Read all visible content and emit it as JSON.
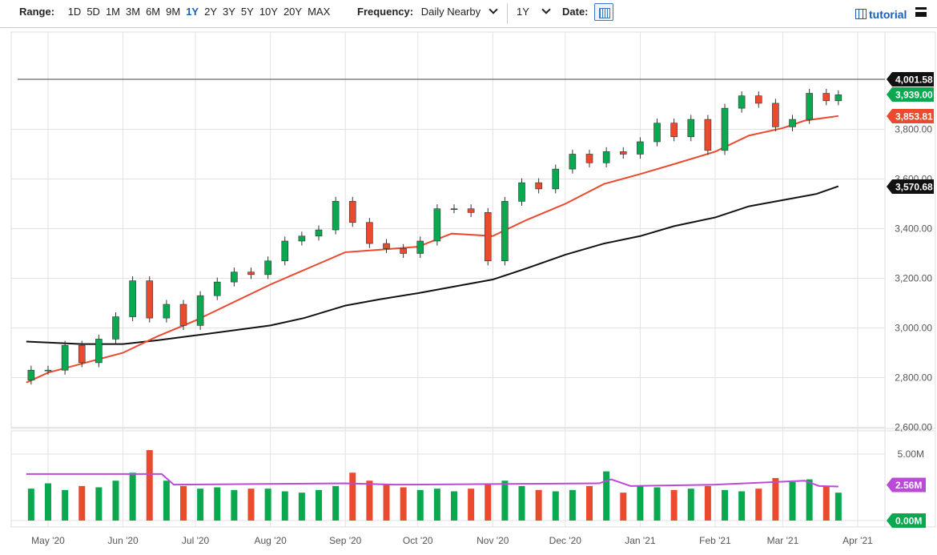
{
  "toolbar": {
    "range_label": "Range:",
    "ranges": [
      "1D",
      "5D",
      "1M",
      "3M",
      "6M",
      "9M",
      "1Y",
      "2Y",
      "3Y",
      "5Y",
      "10Y",
      "20Y",
      "MAX"
    ],
    "active_range": "1Y",
    "frequency_label": "Frequency:",
    "frequency_value": "Daily Nearby",
    "period_value": "1Y",
    "date_label": "Date:",
    "tutorial_label": "tutorial"
  },
  "colors": {
    "up": "#0aa84f",
    "down": "#ea4a2e",
    "ma_fast": "#ea4a2e",
    "ma_slow": "#111111",
    "volume_avg": "#b94bd6",
    "grid": "#e2e2e2"
  },
  "chart_data": {
    "type": "candlestick",
    "price_axis": {
      "ticks": [
        "3,800.00",
        "3,600.00",
        "3,400.00",
        "3,200.00",
        "3,000.00",
        "2,800.00",
        "2,600.00"
      ],
      "tick_values": [
        3800,
        3600,
        3400,
        3200,
        3000,
        2800,
        2600
      ],
      "range": [
        2600,
        4060
      ]
    },
    "x_ticks": [
      {
        "label": "May '20",
        "date": "2020-05-01"
      },
      {
        "label": "Jun '20",
        "date": "2020-06-01"
      },
      {
        "label": "Jul '20",
        "date": "2020-07-01"
      },
      {
        "label": "Aug '20",
        "date": "2020-08-01"
      },
      {
        "label": "Sep '20",
        "date": "2020-09-01"
      },
      {
        "label": "Oct '20",
        "date": "2020-10-01"
      },
      {
        "label": "Nov '20",
        "date": "2020-11-01"
      },
      {
        "label": "Dec '20",
        "date": "2020-12-01"
      },
      {
        "label": "Jan '21",
        "date": "2021-01-01"
      },
      {
        "label": "Feb '21",
        "date": "2021-02-01"
      },
      {
        "label": "Mar '21",
        "date": "2021-03-01"
      },
      {
        "label": "Apr '21",
        "date": "2021-04-01"
      }
    ],
    "candles": [
      [
        "2020-04-24",
        2830
      ],
      [
        "2020-05-01",
        2830
      ],
      [
        "2020-05-08",
        2930
      ],
      [
        "2020-05-15",
        2860
      ],
      [
        "2020-05-22",
        2955
      ],
      [
        "2020-05-29",
        3045
      ],
      [
        "2020-06-05",
        3190
      ],
      [
        "2020-06-12",
        3040
      ],
      [
        "2020-06-19",
        3095
      ],
      [
        "2020-06-26",
        3010
      ],
      [
        "2020-07-03",
        3130
      ],
      [
        "2020-07-10",
        3185
      ],
      [
        "2020-07-17",
        3225
      ],
      [
        "2020-07-24",
        3215
      ],
      [
        "2020-07-31",
        3270
      ],
      [
        "2020-08-07",
        3350
      ],
      [
        "2020-08-14",
        3370
      ],
      [
        "2020-08-21",
        3395
      ],
      [
        "2020-08-28",
        3510
      ],
      [
        "2020-09-04",
        3425
      ],
      [
        "2020-09-11",
        3340
      ],
      [
        "2020-09-18",
        3320
      ],
      [
        "2020-09-25",
        3300
      ],
      [
        "2020-10-02",
        3350
      ],
      [
        "2020-10-09",
        3480
      ],
      [
        "2020-10-16",
        3480
      ],
      [
        "2020-10-23",
        3465
      ],
      [
        "2020-10-30",
        3270
      ],
      [
        "2020-11-06",
        3510
      ],
      [
        "2020-11-13",
        3585
      ],
      [
        "2020-11-20",
        3560
      ],
      [
        "2020-11-27",
        3640
      ],
      [
        "2020-12-04",
        3700
      ],
      [
        "2020-12-11",
        3665
      ],
      [
        "2020-12-18",
        3710
      ],
      [
        "2020-12-25",
        3700
      ],
      [
        "2021-01-01",
        3750
      ],
      [
        "2021-01-08",
        3825
      ],
      [
        "2021-01-15",
        3770
      ],
      [
        "2021-01-22",
        3840
      ],
      [
        "2021-01-29",
        3715
      ],
      [
        "2021-02-05",
        3885
      ],
      [
        "2021-02-12",
        3935
      ],
      [
        "2021-02-19",
        3905
      ],
      [
        "2021-02-26",
        3810
      ],
      [
        "2021-03-05",
        3840
      ],
      [
        "2021-03-12",
        3945
      ],
      [
        "2021-03-19",
        3915
      ],
      [
        "2021-03-24",
        3939
      ]
    ],
    "ma_fast": [
      [
        "2020-04-22",
        2780
      ],
      [
        "2020-05-01",
        2820
      ],
      [
        "2020-06-01",
        2900
      ],
      [
        "2020-06-15",
        2965
      ],
      [
        "2020-07-01",
        3030
      ],
      [
        "2020-08-01",
        3175
      ],
      [
        "2020-09-01",
        3305
      ],
      [
        "2020-09-15",
        3315
      ],
      [
        "2020-10-01",
        3327
      ],
      [
        "2020-10-15",
        3380
      ],
      [
        "2020-11-01",
        3370
      ],
      [
        "2020-11-15",
        3435
      ],
      [
        "2020-12-01",
        3500
      ],
      [
        "2020-12-17",
        3580
      ],
      [
        "2021-01-01",
        3620
      ],
      [
        "2021-01-15",
        3660
      ],
      [
        "2021-02-01",
        3710
      ],
      [
        "2021-02-15",
        3775
      ],
      [
        "2021-03-01",
        3805
      ],
      [
        "2021-03-10",
        3835
      ],
      [
        "2021-03-24",
        3853.81
      ]
    ],
    "ma_slow": [
      [
        "2020-04-22",
        2945
      ],
      [
        "2020-05-15",
        2935
      ],
      [
        "2020-06-01",
        2935
      ],
      [
        "2020-06-15",
        2950
      ],
      [
        "2020-07-01",
        2970
      ],
      [
        "2020-08-01",
        3010
      ],
      [
        "2020-08-15",
        3040
      ],
      [
        "2020-09-01",
        3090
      ],
      [
        "2020-09-15",
        3115
      ],
      [
        "2020-10-01",
        3140
      ],
      [
        "2020-10-15",
        3165
      ],
      [
        "2020-11-01",
        3195
      ],
      [
        "2020-11-15",
        3240
      ],
      [
        "2020-12-01",
        3295
      ],
      [
        "2020-12-17",
        3340
      ],
      [
        "2021-01-01",
        3370
      ],
      [
        "2021-01-15",
        3410
      ],
      [
        "2021-02-01",
        3445
      ],
      [
        "2021-02-15",
        3490
      ],
      [
        "2021-03-01",
        3515
      ],
      [
        "2021-03-15",
        3540
      ],
      [
        "2021-03-24",
        3570.68
      ]
    ],
    "reference_line": 4001.58,
    "price_tags": [
      {
        "value": 4001.58,
        "label": "4,001.58",
        "color": "#111111"
      },
      {
        "value": 3939.0,
        "label": "3,939.00",
        "color": "#0aa84f"
      },
      {
        "value": 3853.81,
        "label": "3,853.81",
        "color": "#ea4a2e"
      },
      {
        "value": 3570.68,
        "label": "3,570.68",
        "color": "#111111"
      }
    ],
    "volume": {
      "axis": {
        "ticks": [
          "5.00M"
        ],
        "tick_values": [
          5
        ],
        "range": [
          0,
          7
        ]
      },
      "values": [
        2.4,
        2.8,
        2.3,
        2.6,
        2.5,
        3.0,
        3.6,
        5.3,
        3.0,
        2.6,
        2.4,
        2.5,
        2.3,
        2.4,
        2.4,
        2.2,
        2.1,
        2.3,
        2.6,
        3.6,
        3.0,
        2.7,
        2.5,
        2.3,
        2.4,
        2.2,
        2.4,
        2.8,
        3.0,
        2.6,
        2.3,
        2.2,
        2.3,
        2.6,
        3.7,
        2.1,
        2.6,
        2.5,
        2.3,
        2.4,
        2.6,
        2.3,
        2.2,
        2.4,
        3.2,
        2.9,
        3.1,
        2.6,
        2.1
      ],
      "avg": [
        [
          "2020-04-22",
          3.5
        ],
        [
          "2020-06-17",
          3.5
        ],
        [
          "2020-06-22",
          2.7
        ],
        [
          "2020-09-01",
          2.8
        ],
        [
          "2020-09-21",
          2.7
        ],
        [
          "2020-12-15",
          2.8
        ],
        [
          "2020-12-20",
          3.1
        ],
        [
          "2020-12-28",
          2.6
        ],
        [
          "2021-02-01",
          2.7
        ],
        [
          "2021-03-10",
          3.0
        ],
        [
          "2021-03-16",
          2.6
        ],
        [
          "2021-03-24",
          2.56
        ]
      ],
      "tags": [
        {
          "value": 2.56,
          "label": "2.56M",
          "color": "#b94bd6"
        },
        {
          "value": 0,
          "label": "0.00M",
          "color": "#0aa84f"
        }
      ]
    }
  }
}
